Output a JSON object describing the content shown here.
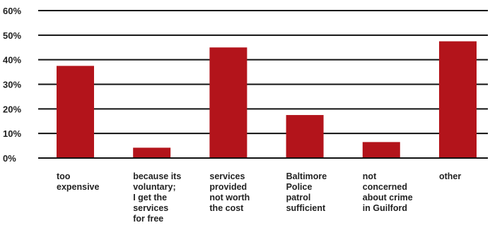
{
  "chart_data": {
    "type": "bar",
    "categories": [
      "too\nexpensive",
      "because its\nvoluntary;\nI get the\nservices\nfor free",
      "services\nprovided\nnot worth\nthe cost",
      "Baltimore\nPolice\npatrol\nsufficient",
      "not\nconcerned\nabout crime\nin Guilford",
      "other"
    ],
    "values": [
      37.5,
      4.2,
      45,
      17.5,
      6.5,
      47.5
    ],
    "ylim": [
      0,
      60
    ],
    "yticks": [
      "0%",
      "10%",
      "20%",
      "30%",
      "40%",
      "50%",
      "60%"
    ],
    "grid": true,
    "bar_color": "#b3141b"
  }
}
